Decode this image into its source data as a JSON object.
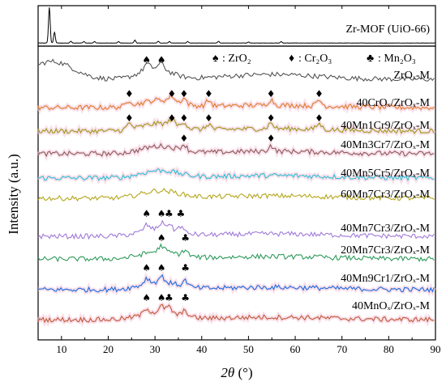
{
  "chart_data": {
    "type": "line",
    "title": "",
    "xlabel_main": "2θ",
    "xlabel_unit": " (°)",
    "ylabel": "Intensity (a.u.)",
    "xlim": [
      5,
      90
    ],
    "xticks": [
      "10",
      "20",
      "30",
      "40",
      "50",
      "60",
      "70",
      "80",
      "90"
    ],
    "legend": {
      "entries": [
        {
          "symbol": "♠",
          "text": ": ZrO₂",
          "name": "zro2"
        },
        {
          "symbol": "♦",
          "text": ": Cr₂O₃",
          "name": "cr2o3"
        },
        {
          "symbol": "♣",
          "text": ": Mn₂O₃",
          "name": "mn2o3"
        }
      ]
    },
    "top_panel": {
      "name": "Zr-MOF (UiO-66)",
      "color": "#000000",
      "peaks": [
        [
          7.4,
          1.0
        ],
        [
          8.5,
          0.3
        ],
        [
          12.0,
          0.05
        ],
        [
          14.8,
          0.04
        ],
        [
          17.1,
          0.04
        ],
        [
          22.2,
          0.04
        ],
        [
          25.7,
          0.08
        ],
        [
          30.7,
          0.05
        ],
        [
          33.1,
          0.04
        ],
        [
          37.0,
          0.04
        ],
        [
          43.6,
          0.05
        ],
        [
          50.0,
          0.03
        ],
        [
          57.0,
          0.04
        ]
      ]
    },
    "series": [
      {
        "name": "ZrOₓ-M",
        "color": "#555555",
        "markers": [
          {
            "x": 28.2,
            "sym": "♠"
          },
          {
            "x": 31.4,
            "sym": "♠"
          }
        ]
      },
      {
        "name": "40CrOₓ/ZrOₓ-M",
        "color": "#e07b2a",
        "markers": [
          {
            "x": 24.5,
            "sym": "♦"
          },
          {
            "x": 33.6,
            "sym": "♦"
          },
          {
            "x": 36.2,
            "sym": "♦"
          },
          {
            "x": 41.5,
            "sym": "♦"
          },
          {
            "x": 54.8,
            "sym": "♦"
          },
          {
            "x": 65.1,
            "sym": "♦"
          }
        ]
      },
      {
        "name": "40Mn1Cr9/ZrOₓ-M",
        "color": "#9a9a1a",
        "markers": [
          {
            "x": 24.5,
            "sym": "♦"
          },
          {
            "x": 33.6,
            "sym": "♦"
          },
          {
            "x": 36.2,
            "sym": "♦"
          },
          {
            "x": 41.5,
            "sym": "♦"
          },
          {
            "x": 54.8,
            "sym": "♦"
          },
          {
            "x": 65.1,
            "sym": "♦"
          }
        ]
      },
      {
        "name": "40Mn3Cr7/ZrOₓ-M",
        "color": "#8b5a5a",
        "markers": [
          {
            "x": 36.2,
            "sym": "♦"
          },
          {
            "x": 54.8,
            "sym": "♦"
          }
        ]
      },
      {
        "name": "40Mn5Cr5/ZrOₓ-M",
        "color": "#2bbfd6",
        "markers": []
      },
      {
        "name": "60Mn7Cr3/ZrOₓ-M",
        "color": "#b5a61c",
        "markers": []
      },
      {
        "name": "40Mn7Cr3/ZrOₓ-M",
        "color": "#a07ad8",
        "markers": [
          {
            "x": 28.2,
            "sym": "♠"
          },
          {
            "x": 31.4,
            "sym": "♠"
          },
          {
            "x": 33.0,
            "sym": "♣"
          },
          {
            "x": 35.5,
            "sym": "♣"
          }
        ]
      },
      {
        "name": "20Mn7Cr3/ZrOₓ-M",
        "color": "#2e9a5a",
        "markers": [
          {
            "x": 31.4,
            "sym": "♠"
          },
          {
            "x": 36.5,
            "sym": "♣"
          }
        ]
      },
      {
        "name": "40Mn9Cr1/ZrOₓ-M",
        "color": "#1a6be0",
        "markers": [
          {
            "x": 28.2,
            "sym": "♠"
          },
          {
            "x": 31.4,
            "sym": "♠"
          },
          {
            "x": 36.5,
            "sym": "♣"
          }
        ]
      },
      {
        "name": "40MnOₓ/ZrOₓ-M",
        "color": "#c05a3a",
        "markers": [
          {
            "x": 28.2,
            "sym": "♠"
          },
          {
            "x": 31.4,
            "sym": "♠"
          },
          {
            "x": 33.0,
            "sym": "♣"
          },
          {
            "x": 36.5,
            "sym": "♣"
          }
        ]
      }
    ]
  }
}
